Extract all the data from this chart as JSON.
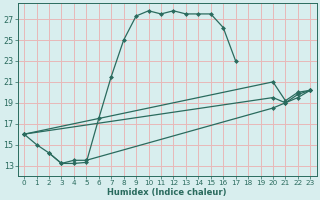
{
  "xlabel": "Humidex (Indice chaleur)",
  "xlim": [
    -0.5,
    23.5
  ],
  "ylim": [
    12.0,
    28.5
  ],
  "xticks": [
    0,
    1,
    2,
    3,
    4,
    5,
    6,
    7,
    8,
    9,
    10,
    11,
    12,
    13,
    14,
    15,
    16,
    17,
    18,
    19,
    20,
    21,
    22,
    23
  ],
  "yticks": [
    13,
    15,
    17,
    19,
    21,
    23,
    25,
    27
  ],
  "line_color": "#2a6b5e",
  "bg_color": "#d8eeee",
  "grid_color": "#e8b8b8",
  "series1_x": [
    0,
    1,
    2,
    3,
    4,
    5,
    6,
    7,
    8,
    9,
    10,
    11,
    12,
    13,
    14,
    15,
    16,
    17
  ],
  "series1_y": [
    16.0,
    15.0,
    14.2,
    13.2,
    13.2,
    13.3,
    17.5,
    21.5,
    25.0,
    27.3,
    27.8,
    27.5,
    27.8,
    27.5,
    27.5,
    27.5,
    26.2,
    23.0
  ],
  "series2_x": [
    0,
    20,
    21,
    22,
    23
  ],
  "series2_y": [
    16.0,
    21.0,
    19.2,
    20.0,
    20.2
  ],
  "series3_x": [
    0,
    20,
    21,
    22,
    23
  ],
  "series3_y": [
    16.0,
    19.5,
    19.0,
    19.8,
    20.2
  ],
  "series4_x": [
    2,
    3,
    4,
    5,
    20,
    21,
    22,
    23
  ],
  "series4_y": [
    14.2,
    13.2,
    13.5,
    13.5,
    18.5,
    19.0,
    19.5,
    20.2
  ]
}
